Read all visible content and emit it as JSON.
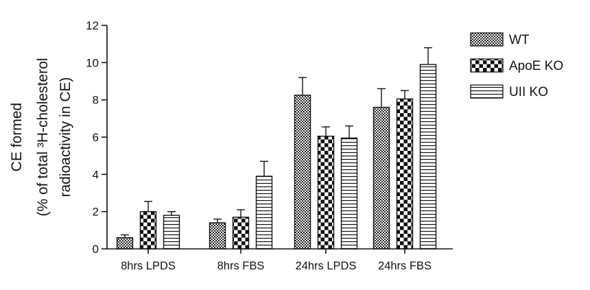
{
  "chart_data": {
    "type": "bar",
    "categories": [
      "8hrs LPDS",
      "8hrs FBS",
      "24hrs LPDS",
      "24hrs FBS"
    ],
    "series": [
      {
        "name": "WT",
        "pattern": "fine-check",
        "values": [
          0.6,
          1.4,
          8.25,
          7.6
        ],
        "errors": [
          0.15,
          0.2,
          0.95,
          1.0
        ]
      },
      {
        "name": "ApoE KO",
        "pattern": "coarse-check",
        "values": [
          2.0,
          1.7,
          6.05,
          8.05
        ],
        "errors": [
          0.55,
          0.4,
          0.5,
          0.45
        ]
      },
      {
        "name": "UII KO",
        "pattern": "horizontal-stripes",
        "values": [
          1.8,
          3.9,
          5.95,
          9.9
        ],
        "errors": [
          0.2,
          0.8,
          0.65,
          0.9
        ]
      }
    ],
    "ylabel_lines": [
      "CE formed",
      "(% of total ³H-cholesterol",
      "radioactivity in CE)"
    ],
    "ylim": [
      0,
      12
    ],
    "yticks": [
      "0",
      "2",
      "4",
      "6",
      "8",
      "10",
      "12"
    ],
    "legend_position": "top-right"
  },
  "colors": {
    "ink": "#111111",
    "background": "#ffffff"
  }
}
